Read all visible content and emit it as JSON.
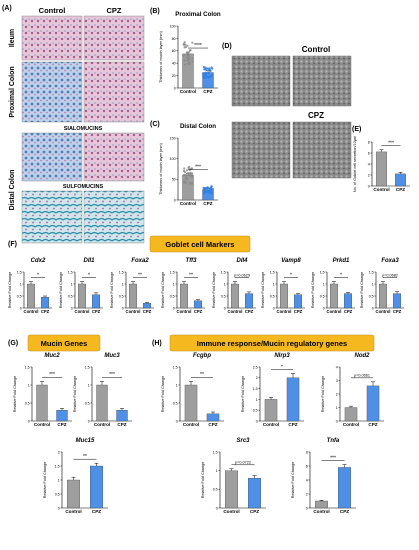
{
  "panels": {
    "A": {
      "letter": "(A)",
      "col_control": "Control",
      "col_cpz": "CPZ",
      "row_ileum": "Ileum",
      "row_proximal": "Proximal Colon",
      "row_distal": "Distal Colon",
      "label_sialo": "SIALOMUCINS",
      "label_sulfo": "SULFOMUCINS"
    },
    "B": {
      "letter": "(B)",
      "title": "Proximal Colon",
      "ylabel": "Thickness of mucin layer (mm)",
      "sig": "****",
      "categories": [
        "Control",
        "CPZ"
      ]
    },
    "C": {
      "letter": "(C)",
      "title": "Distal Colon",
      "ylabel": "Thickness of mucin layer (mm)",
      "sig": "***",
      "categories": [
        "Control",
        "CPZ"
      ]
    },
    "D": {
      "letter": "(D)",
      "label_control": "Control",
      "label_cpz": "CPZ"
    },
    "E": {
      "letter": "(E)",
      "ylabel": "No. of Goblet cell secretion/10μm",
      "sig": "***",
      "categories": [
        "Control",
        "CPZ"
      ]
    },
    "F": {
      "letter": "(F)",
      "banner": "Goblet cell Markers",
      "ylabel": "Relative Fold Change"
    },
    "G": {
      "letter": "(G)",
      "banner": "Mucin Genes",
      "ylabel": "Relative Fold Change"
    },
    "H": {
      "letter": "(H)",
      "banner": "Immune response/Mucin regulatory genes",
      "ylabel": "Relative Fold Change"
    }
  },
  "colors": {
    "control_bar": "#9e9e9e",
    "cpz_bar": "#4f8fe6",
    "banner": "#f6b81f",
    "scatter_control": "#8a8a8a",
    "scatter_cpz": "#2f7fe6"
  },
  "chart_data": [
    {
      "id": "B",
      "type": "bar",
      "categories": [
        "Control",
        "CPZ"
      ],
      "values": [
        55,
        25
      ],
      "errors": [
        3,
        3
      ],
      "ylim": [
        0,
        100
      ],
      "yticks": [
        0,
        20,
        40,
        60,
        80,
        100
      ],
      "annotation": "****"
    },
    {
      "id": "C",
      "type": "bar",
      "categories": [
        "Control",
        "CPZ"
      ],
      "values": [
        60,
        25
      ],
      "errors": [
        4,
        3
      ],
      "ylim": [
        0,
        150
      ],
      "yticks": [
        0,
        50,
        100,
        150
      ],
      "annotation": "***"
    },
    {
      "id": "E",
      "type": "bar",
      "categories": [
        "Control",
        "CPZ"
      ],
      "values": [
        6.2,
        2.2
      ],
      "errors": [
        0.4,
        0.3
      ],
      "ylim": [
        0,
        8
      ],
      "yticks": [
        0,
        2,
        4,
        6,
        8
      ],
      "annotation": "***"
    },
    {
      "id": "Cdx2",
      "type": "bar",
      "title": "Cdx2",
      "categories": [
        "Control",
        "CPZ"
      ],
      "values": [
        1.0,
        0.45
      ],
      "errors": [
        0.1,
        0.05
      ],
      "ylim": [
        0,
        1.5
      ],
      "yticks": [
        0,
        0.5,
        1,
        1.5
      ],
      "annotation": "*"
    },
    {
      "id": "Dll1",
      "type": "bar",
      "title": "Dll1",
      "categories": [
        "Control",
        "CPZ"
      ],
      "values": [
        1.0,
        0.55
      ],
      "errors": [
        0.1,
        0.08
      ],
      "ylim": [
        0,
        1.5
      ],
      "yticks": [
        0,
        0.5,
        1,
        1.5
      ],
      "annotation": "*"
    },
    {
      "id": "Foxa2",
      "type": "bar",
      "title": "Foxa2",
      "categories": [
        "Control",
        "CPZ"
      ],
      "values": [
        1.0,
        0.2
      ],
      "errors": [
        0.1,
        0.03
      ],
      "ylim": [
        0,
        1.5
      ],
      "yticks": [
        0,
        0.5,
        1,
        1.5
      ],
      "annotation": "**"
    },
    {
      "id": "Tff3",
      "type": "bar",
      "title": "Tff3",
      "categories": [
        "Control",
        "CPZ"
      ],
      "values": [
        1.0,
        0.3
      ],
      "errors": [
        0.1,
        0.05
      ],
      "ylim": [
        0,
        1.5
      ],
      "yticks": [
        0,
        0.5,
        1,
        1.5
      ],
      "annotation": "**"
    },
    {
      "id": "Dll4",
      "type": "bar",
      "title": "Dll4",
      "categories": [
        "Control",
        "CPZ"
      ],
      "values": [
        1.0,
        0.6
      ],
      "errors": [
        0.1,
        0.07
      ],
      "ylim": [
        0,
        1.5
      ],
      "yticks": [
        0,
        0.5,
        1,
        1.5
      ],
      "annotation": "p=0.0629"
    },
    {
      "id": "Vamp8",
      "type": "bar",
      "title": "Vamp8",
      "categories": [
        "Control",
        "CPZ"
      ],
      "values": [
        1.0,
        0.55
      ],
      "errors": [
        0.1,
        0.05
      ],
      "ylim": [
        0,
        1.5
      ],
      "yticks": [
        0,
        0.5,
        1,
        1.5
      ],
      "annotation": "*"
    },
    {
      "id": "Prkd1",
      "type": "bar",
      "title": "Prkd1",
      "categories": [
        "Control",
        "CPZ"
      ],
      "values": [
        1.0,
        0.6
      ],
      "errors": [
        0.1,
        0.05
      ],
      "ylim": [
        0,
        1.5
      ],
      "yticks": [
        0,
        0.5,
        1,
        1.5
      ],
      "annotation": "*"
    },
    {
      "id": "Foxa3",
      "type": "bar",
      "title": "Foxa3",
      "categories": [
        "Control",
        "CPZ"
      ],
      "values": [
        1.0,
        0.6
      ],
      "errors": [
        0.1,
        0.08
      ],
      "ylim": [
        0,
        1.5
      ],
      "yticks": [
        0,
        0.5,
        1,
        1.5
      ],
      "annotation": "p=0.0682"
    },
    {
      "id": "Muc2",
      "type": "bar",
      "title": "Muc2",
      "categories": [
        "Control",
        "CPZ"
      ],
      "values": [
        1.0,
        0.3
      ],
      "errors": [
        0.1,
        0.05
      ],
      "ylim": [
        0,
        1.5
      ],
      "yticks": [
        0,
        0.5,
        1,
        1.5
      ],
      "annotation": "***"
    },
    {
      "id": "Muc3",
      "type": "bar",
      "title": "Muc3",
      "categories": [
        "Control",
        "CPZ"
      ],
      "values": [
        1.0,
        0.3
      ],
      "errors": [
        0.1,
        0.05
      ],
      "ylim": [
        0,
        1.5
      ],
      "yticks": [
        0,
        0.5,
        1,
        1.5
      ],
      "annotation": "***"
    },
    {
      "id": "Muc15",
      "type": "bar",
      "title": "Muc15",
      "categories": [
        "Control",
        "CPZ"
      ],
      "values": [
        1.0,
        1.5
      ],
      "errors": [
        0.1,
        0.1
      ],
      "ylim": [
        0,
        2
      ],
      "yticks": [
        0,
        0.5,
        1,
        1.5,
        2
      ],
      "annotation": "**"
    },
    {
      "id": "Fcgbp",
      "type": "bar",
      "title": "Fcgbp",
      "categories": [
        "Control",
        "CPZ"
      ],
      "values": [
        1.0,
        0.2
      ],
      "errors": [
        0.1,
        0.05
      ],
      "ylim": [
        0,
        1.5
      ],
      "yticks": [
        0,
        0.5,
        1,
        1.5
      ],
      "annotation": "**"
    },
    {
      "id": "Nlrp3",
      "type": "bar",
      "title": "Nlrp3",
      "categories": [
        "Control",
        "CPZ"
      ],
      "values": [
        1.0,
        2.0
      ],
      "errors": [
        0.1,
        0.2
      ],
      "ylim": [
        0,
        2.5
      ],
      "yticks": [
        0,
        0.5,
        1,
        1.5,
        2,
        2.5
      ],
      "annotation": "*"
    },
    {
      "id": "Nod2",
      "type": "bar",
      "title": "Nod2",
      "categories": [
        "Control",
        "CPZ"
      ],
      "values": [
        1.0,
        2.6
      ],
      "errors": [
        0.1,
        0.3
      ],
      "ylim": [
        0,
        4
      ],
      "yticks": [
        0,
        1,
        2,
        3,
        4
      ],
      "annotation": "p=0.0661"
    },
    {
      "id": "Src3",
      "type": "bar",
      "title": "Src3",
      "categories": [
        "Control",
        "CPZ"
      ],
      "values": [
        1.0,
        0.8
      ],
      "errors": [
        0.05,
        0.07
      ],
      "ylim": [
        0,
        1.5
      ],
      "yticks": [
        0,
        0.5,
        1,
        1.5
      ],
      "annotation": "p=0.0722"
    },
    {
      "id": "Tnfa",
      "type": "bar",
      "title": "Tnfa",
      "categories": [
        "Control",
        "CPZ"
      ],
      "values": [
        1.0,
        5.8
      ],
      "errors": [
        0.1,
        0.4
      ],
      "ylim": [
        0,
        8
      ],
      "yticks": [
        0,
        2,
        4,
        6,
        8
      ],
      "annotation": "***"
    }
  ]
}
